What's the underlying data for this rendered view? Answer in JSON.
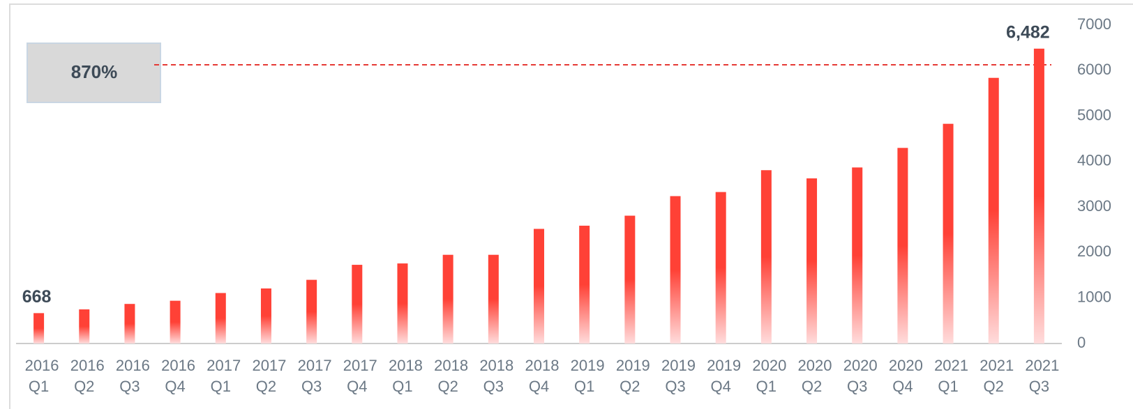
{
  "chart_data": {
    "type": "bar",
    "categories": [
      "2016 Q1",
      "2016 Q2",
      "2016 Q3",
      "2016 Q4",
      "2017 Q1",
      "2017 Q2",
      "2017 Q3",
      "2017 Q4",
      "2018 Q1",
      "2018 Q2",
      "2018 Q3",
      "2018 Q4",
      "2019 Q1",
      "2019 Q2",
      "2019 Q3",
      "2019 Q4",
      "2020 Q1",
      "2020 Q2",
      "2020 Q3",
      "2020 Q4",
      "2021 Q1",
      "2021 Q2",
      "2021 Q3"
    ],
    "values": [
      668,
      750,
      870,
      940,
      1110,
      1210,
      1400,
      1730,
      1760,
      1950,
      1950,
      2520,
      2590,
      2810,
      3240,
      3330,
      3810,
      3630,
      3870,
      4300,
      4830,
      5840,
      6482
    ],
    "value_labels": [
      "668",
      null,
      null,
      null,
      null,
      null,
      null,
      null,
      null,
      null,
      null,
      null,
      null,
      null,
      null,
      null,
      null,
      null,
      null,
      null,
      null,
      null,
      "6,482"
    ],
    "annotation": "870%",
    "color": "#ff4136",
    "ylim": [
      0,
      7000
    ],
    "yticks": [
      0,
      1000,
      2000,
      3000,
      4000,
      5000,
      6000,
      7000
    ],
    "y_axis_side": "right"
  }
}
